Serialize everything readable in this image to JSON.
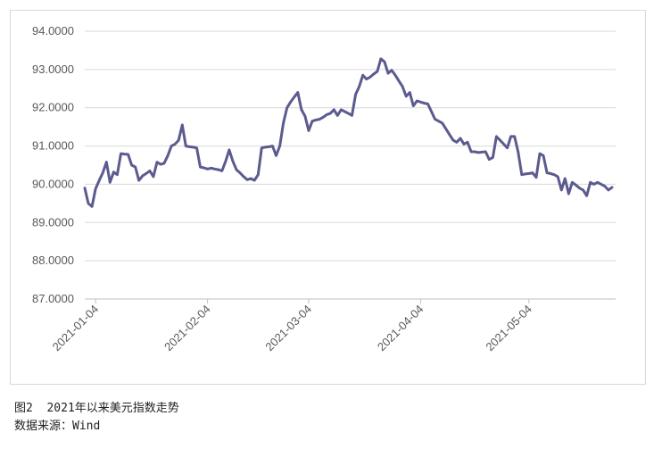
{
  "caption": {
    "title": "图2  2021年以来美元指数走势",
    "source": "数据来源：Wind"
  },
  "colors": {
    "line": "#5b5b8f",
    "grid": "#d9d9d9",
    "axis": "#bfbfbf",
    "text": "#595959"
  },
  "chart_data": {
    "type": "line",
    "title": "",
    "xlabel": "",
    "ylabel": "",
    "ylim": [
      87,
      94
    ],
    "yticks": [
      "94.0000",
      "93.0000",
      "92.0000",
      "91.0000",
      "90.0000",
      "89.0000",
      "88.0000",
      "87.0000"
    ],
    "xticks": [
      "2021-01-04",
      "2021-02-04",
      "2021-03-04",
      "2021-04-04",
      "2021-05-04"
    ],
    "grid": "horizontal",
    "legend": "none",
    "series": [
      {
        "values": [
          [
            "2021-01-01",
            89.9
          ],
          [
            "2021-01-02",
            89.5
          ],
          [
            "2021-01-03",
            89.42
          ],
          [
            "2021-01-04",
            89.88
          ],
          [
            "2021-01-05",
            90.1
          ],
          [
            "2021-01-06",
            90.3
          ],
          [
            "2021-01-07",
            90.58
          ],
          [
            "2021-01-08",
            90.05
          ],
          [
            "2021-01-09",
            90.32
          ],
          [
            "2021-01-10",
            90.25
          ],
          [
            "2021-01-11",
            90.8
          ],
          [
            "2021-01-12",
            90.79
          ],
          [
            "2021-01-13",
            90.78
          ],
          [
            "2021-01-14",
            90.5
          ],
          [
            "2021-01-15",
            90.45
          ],
          [
            "2021-01-16",
            90.1
          ],
          [
            "2021-01-17",
            90.22
          ],
          [
            "2021-01-18",
            90.28
          ],
          [
            "2021-01-19",
            90.35
          ],
          [
            "2021-01-20",
            90.2
          ],
          [
            "2021-01-21",
            90.58
          ],
          [
            "2021-01-22",
            90.52
          ],
          [
            "2021-01-23",
            90.55
          ],
          [
            "2021-01-24",
            90.75
          ],
          [
            "2021-01-25",
            91.0
          ],
          [
            "2021-01-26",
            91.05
          ],
          [
            "2021-01-27",
            91.15
          ],
          [
            "2021-01-28",
            91.55
          ],
          [
            "2021-01-29",
            91.0
          ],
          [
            "2021-01-30",
            90.98
          ],
          [
            "2021-01-31",
            90.97
          ],
          [
            "2021-02-01",
            90.95
          ],
          [
            "2021-02-02",
            90.45
          ],
          [
            "2021-02-03",
            90.43
          ],
          [
            "2021-02-04",
            90.4
          ],
          [
            "2021-02-05",
            90.42
          ],
          [
            "2021-02-06",
            90.4
          ],
          [
            "2021-02-07",
            90.38
          ],
          [
            "2021-02-08",
            90.35
          ],
          [
            "2021-02-09",
            90.6
          ],
          [
            "2021-02-10",
            90.9
          ],
          [
            "2021-02-11",
            90.6
          ],
          [
            "2021-02-12",
            90.38
          ],
          [
            "2021-02-13",
            90.3
          ],
          [
            "2021-02-14",
            90.2
          ],
          [
            "2021-02-15",
            90.12
          ],
          [
            "2021-02-16",
            90.15
          ],
          [
            "2021-02-17",
            90.1
          ],
          [
            "2021-02-18",
            90.25
          ],
          [
            "2021-02-19",
            90.95
          ],
          [
            "2021-02-20",
            90.97
          ],
          [
            "2021-02-21",
            90.98
          ],
          [
            "2021-02-22",
            91.0
          ],
          [
            "2021-02-23",
            90.75
          ],
          [
            "2021-02-24",
            91.0
          ],
          [
            "2021-02-25",
            91.6
          ],
          [
            "2021-02-26",
            92.0
          ],
          [
            "2021-02-27",
            92.15
          ],
          [
            "2021-02-28",
            92.28
          ],
          [
            "2021-03-01",
            92.4
          ],
          [
            "2021-03-02",
            91.95
          ],
          [
            "2021-03-03",
            91.78
          ],
          [
            "2021-03-04",
            91.4
          ],
          [
            "2021-03-05",
            91.65
          ],
          [
            "2021-03-06",
            91.68
          ],
          [
            "2021-03-07",
            91.7
          ],
          [
            "2021-03-08",
            91.75
          ],
          [
            "2021-03-09",
            91.82
          ],
          [
            "2021-03-10",
            91.85
          ],
          [
            "2021-03-11",
            91.95
          ],
          [
            "2021-03-12",
            91.8
          ],
          [
            "2021-03-13",
            91.95
          ],
          [
            "2021-03-14",
            91.9
          ],
          [
            "2021-03-15",
            91.85
          ],
          [
            "2021-03-16",
            91.8
          ],
          [
            "2021-03-17",
            92.35
          ],
          [
            "2021-03-18",
            92.55
          ],
          [
            "2021-03-19",
            92.85
          ],
          [
            "2021-03-20",
            92.75
          ],
          [
            "2021-03-21",
            92.8
          ],
          [
            "2021-03-22",
            92.88
          ],
          [
            "2021-03-23",
            92.95
          ],
          [
            "2021-03-24",
            93.28
          ],
          [
            "2021-03-25",
            93.2
          ],
          [
            "2021-03-26",
            92.9
          ],
          [
            "2021-03-27",
            92.98
          ],
          [
            "2021-03-28",
            92.85
          ],
          [
            "2021-03-29",
            92.7
          ],
          [
            "2021-03-30",
            92.55
          ],
          [
            "2021-03-31",
            92.3
          ],
          [
            "2021-04-01",
            92.4
          ],
          [
            "2021-04-02",
            92.05
          ],
          [
            "2021-04-03",
            92.18
          ],
          [
            "2021-04-04",
            92.15
          ],
          [
            "2021-04-05",
            92.12
          ],
          [
            "2021-04-06",
            92.1
          ],
          [
            "2021-04-07",
            91.9
          ],
          [
            "2021-04-08",
            91.7
          ],
          [
            "2021-04-09",
            91.65
          ],
          [
            "2021-04-10",
            91.6
          ],
          [
            "2021-04-11",
            91.45
          ],
          [
            "2021-04-12",
            91.3
          ],
          [
            "2021-04-13",
            91.15
          ],
          [
            "2021-04-14",
            91.1
          ],
          [
            "2021-04-15",
            91.2
          ],
          [
            "2021-04-16",
            91.05
          ],
          [
            "2021-04-17",
            91.1
          ],
          [
            "2021-04-18",
            90.85
          ],
          [
            "2021-04-19",
            90.85
          ],
          [
            "2021-04-20",
            90.83
          ],
          [
            "2021-04-21",
            90.84
          ],
          [
            "2021-04-22",
            90.85
          ],
          [
            "2021-04-23",
            90.65
          ],
          [
            "2021-04-24",
            90.7
          ],
          [
            "2021-04-25",
            91.25
          ],
          [
            "2021-04-26",
            91.15
          ],
          [
            "2021-04-27",
            91.05
          ],
          [
            "2021-04-28",
            90.95
          ],
          [
            "2021-04-29",
            91.25
          ],
          [
            "2021-04-30",
            91.25
          ],
          [
            "2021-05-01",
            90.85
          ],
          [
            "2021-05-02",
            90.25
          ],
          [
            "2021-05-03",
            90.27
          ],
          [
            "2021-05-04",
            90.28
          ],
          [
            "2021-05-05",
            90.3
          ],
          [
            "2021-05-06",
            90.18
          ],
          [
            "2021-05-07",
            90.8
          ],
          [
            "2021-05-08",
            90.75
          ],
          [
            "2021-05-09",
            90.3
          ],
          [
            "2021-05-10",
            90.28
          ],
          [
            "2021-05-11",
            90.25
          ],
          [
            "2021-05-12",
            90.2
          ],
          [
            "2021-05-13",
            89.85
          ],
          [
            "2021-05-14",
            90.15
          ],
          [
            "2021-05-15",
            89.75
          ],
          [
            "2021-05-16",
            90.05
          ],
          [
            "2021-05-17",
            89.98
          ],
          [
            "2021-05-18",
            89.9
          ],
          [
            "2021-05-19",
            89.85
          ],
          [
            "2021-05-20",
            89.7
          ],
          [
            "2021-05-21",
            90.05
          ],
          [
            "2021-05-22",
            90.0
          ],
          [
            "2021-05-23",
            90.05
          ],
          [
            "2021-05-24",
            90.0
          ],
          [
            "2021-05-25",
            89.95
          ],
          [
            "2021-05-26",
            89.85
          ],
          [
            "2021-05-27",
            89.92
          ]
        ]
      }
    ]
  }
}
